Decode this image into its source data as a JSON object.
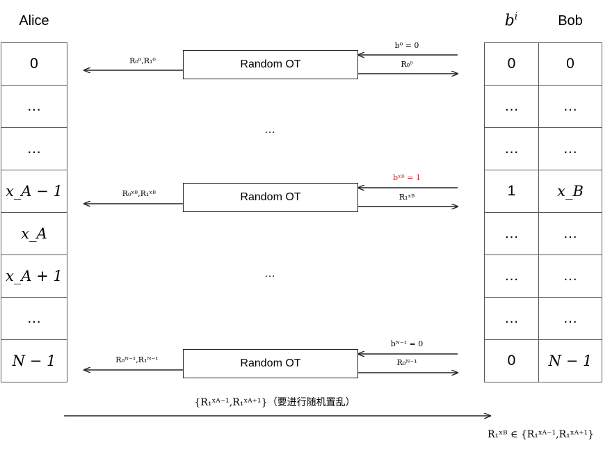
{
  "headers": {
    "alice": "Alice",
    "bi": "b",
    "bi_sup": "i",
    "bob": "Bob"
  },
  "alice_column": [
    "0",
    "…",
    "…",
    "x_A − 1",
    "x_A",
    "x_A + 1",
    "…",
    "N − 1"
  ],
  "bit_column": [
    "0",
    "…",
    "…",
    "1",
    "…",
    "…",
    "…",
    "0"
  ],
  "bob_column": [
    "0",
    "…",
    "…",
    "x_B",
    "…",
    "…",
    "…",
    "N − 1"
  ],
  "ot_rows": [
    {
      "box": "Random OT",
      "left_label": "R₀⁰,R₁⁰",
      "choice": "b⁰ = 0",
      "received": "R₀⁰"
    },
    {
      "box": "Random OT",
      "left_label": "R₀ˣᴮ,R₁ˣᴮ",
      "choice": "bˣᴮ = 1",
      "received": "R₁ˣᴮ"
    },
    {
      "box": "Random OT",
      "left_label": "R₀ᴺ⁻¹,R₁ᴺ⁻¹",
      "choice": "bᴺ⁻¹ = 0",
      "received": "R₀ᴺ⁻¹"
    }
  ],
  "middle_dots": [
    "…",
    "…"
  ],
  "bottom": {
    "message": "{R₁ˣᴬ⁻¹,R₁ˣᴬ⁺¹}（要进行随机置乱）",
    "result": "R₁ˣᴮ ∈ {R₁ˣᴬ⁻¹,R₁ˣᴬ⁺¹}"
  },
  "colors": {
    "highlight": "#d0202a",
    "line": "#222222"
  }
}
